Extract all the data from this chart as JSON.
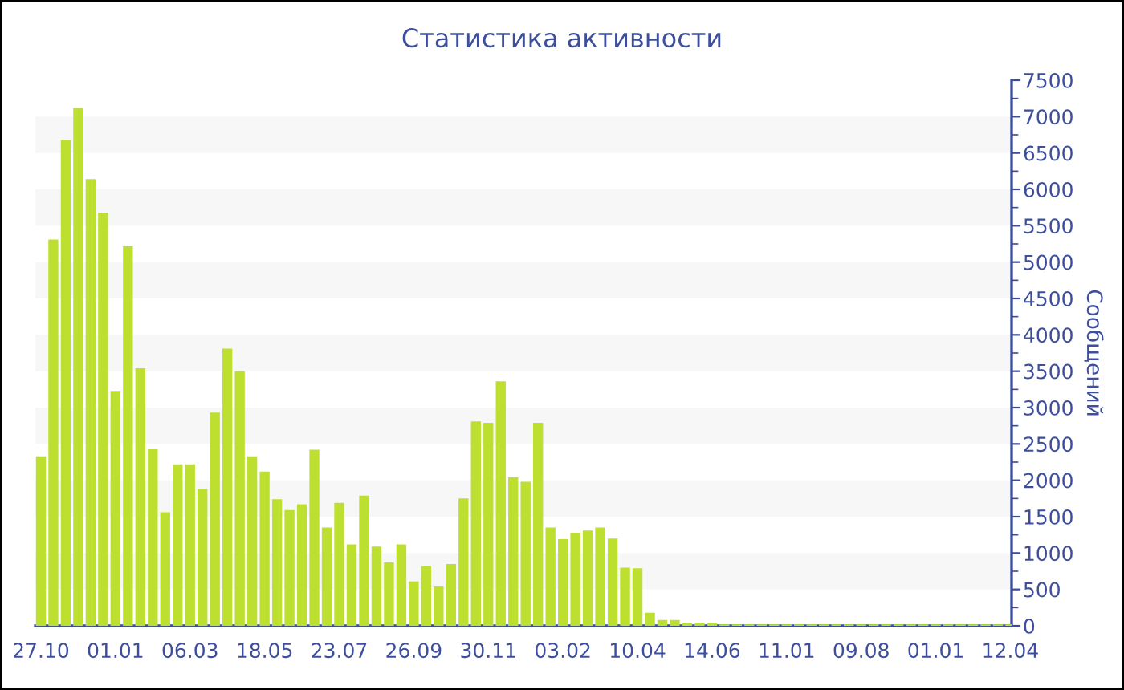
{
  "chart_data": {
    "type": "bar",
    "title": "Статистика активности",
    "ylabel": "Сообщений",
    "categories": [
      "27.10",
      null,
      null,
      null,
      null,
      null,
      "01.01",
      null,
      null,
      null,
      null,
      null,
      "06.03",
      null,
      null,
      null,
      null,
      null,
      "18.05",
      null,
      null,
      null,
      null,
      null,
      "23.07",
      null,
      null,
      null,
      null,
      null,
      "26.09",
      null,
      null,
      null,
      null,
      null,
      "30.11",
      null,
      null,
      null,
      null,
      null,
      "03.02",
      null,
      null,
      null,
      null,
      null,
      "10.04",
      null,
      null,
      null,
      null,
      null,
      "14.06",
      null,
      null,
      null,
      null,
      null,
      "11.01",
      null,
      null,
      null,
      null,
      null,
      "09.08",
      null,
      null,
      null,
      null,
      null,
      "01.01",
      null,
      null,
      null,
      null,
      null,
      "12.04"
    ],
    "values": [
      2330,
      5310,
      6680,
      7120,
      6140,
      5680,
      3230,
      5220,
      3540,
      2430,
      1560,
      2220,
      2220,
      1880,
      2930,
      3810,
      3500,
      2330,
      2120,
      1740,
      1590,
      1670,
      2420,
      1350,
      1690,
      1120,
      1790,
      1090,
      870,
      1120,
      610,
      820,
      540,
      850,
      1750,
      2810,
      2790,
      3360,
      2040,
      1980,
      2790,
      1350,
      1190,
      1280,
      1310,
      1350,
      1200,
      800,
      790,
      180,
      80,
      80,
      40,
      40,
      40,
      20,
      20,
      20,
      20,
      20,
      20,
      20,
      20,
      20,
      20,
      20,
      20,
      20,
      20,
      20,
      20,
      20,
      20,
      20,
      20,
      20,
      20,
      20,
      20
    ],
    "color": "#bde030",
    "ylim": [
      0,
      7500
    ],
    "yticks": [
      0,
      500,
      1000,
      1500,
      2000,
      2500,
      3000,
      3500,
      4000,
      4500,
      5000,
      5500,
      6000,
      6500,
      7000,
      7500
    ],
    "bands": [
      {
        "axis": "y",
        "from": 500,
        "to": 1000,
        "color": "#f7f7f7"
      },
      {
        "axis": "y",
        "from": 1500,
        "to": 2000,
        "color": "#f7f7f7"
      },
      {
        "axis": "y",
        "from": 2500,
        "to": 3000,
        "color": "#f7f7f7"
      },
      {
        "axis": "y",
        "from": 3500,
        "to": 4000,
        "color": "#f7f7f7"
      },
      {
        "axis": "y",
        "from": 4500,
        "to": 5000,
        "color": "#f7f7f7"
      },
      {
        "axis": "y",
        "from": 5500,
        "to": 6000,
        "color": "#f7f7f7"
      },
      {
        "axis": "y",
        "from": 6500,
        "to": 7000,
        "color": "#f7f7f7"
      }
    ]
  }
}
